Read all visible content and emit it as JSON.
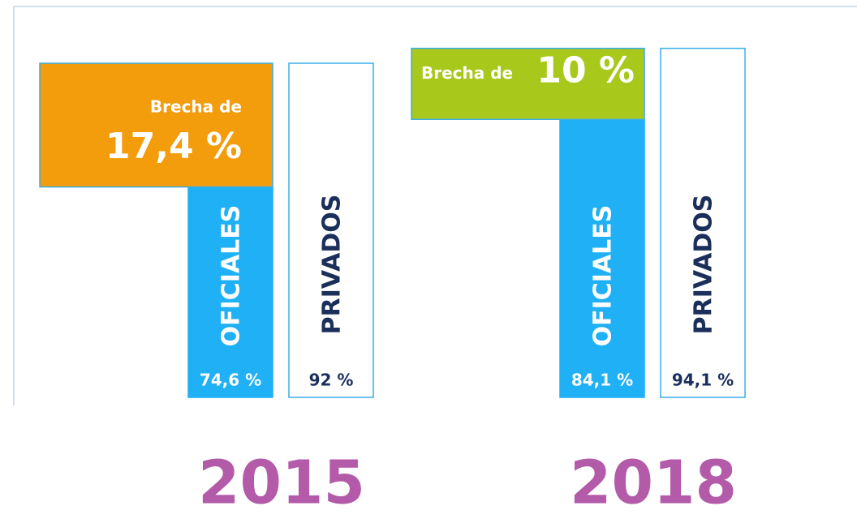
{
  "chart_data": {
    "type": "bar",
    "categories": [
      "2015",
      "2018"
    ],
    "series": [
      {
        "name": "OFICIALES",
        "color": "#1fb0f5",
        "values": [
          74.6,
          84.1
        ],
        "value_labels": [
          "74,6 %",
          "84,1 %"
        ]
      },
      {
        "name": "PRIVADOS",
        "color": "#ffffff",
        "values": [
          92,
          94.1
        ],
        "value_labels": [
          "92 %",
          "94,1 %"
        ]
      }
    ],
    "gap_label": "Brecha de",
    "gaps": [
      17.4,
      10
    ],
    "gap_labels": [
      "17,4 %",
      "10 %"
    ],
    "gap_colors": [
      "#f39c0c",
      "#a9c81c"
    ],
    "ylim": [
      45,
      95
    ]
  }
}
